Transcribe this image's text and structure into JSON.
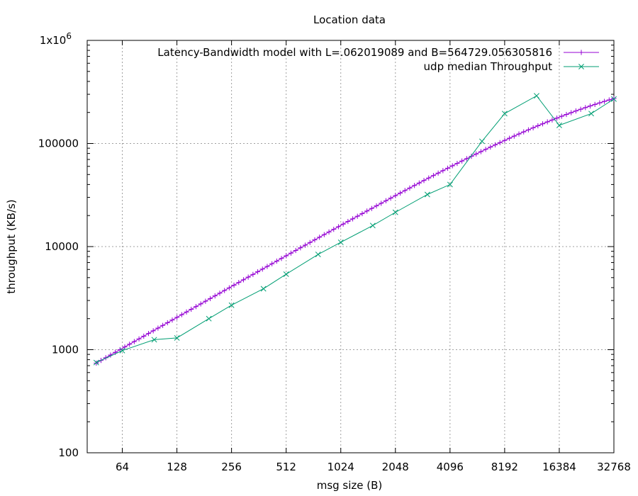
{
  "chart_data": {
    "type": "line",
    "title": "Location data",
    "xlabel": "msg size (B)",
    "ylabel": "throughput (KB/s)",
    "x_scale": "log2",
    "y_scale": "log10",
    "xlim": [
      41,
      32768
    ],
    "ylim": [
      100,
      1000000
    ],
    "grid": true,
    "legend_position": "top-right",
    "x_ticks": [
      {
        "value": 64,
        "label": "64"
      },
      {
        "value": 128,
        "label": "128"
      },
      {
        "value": 256,
        "label": "256"
      },
      {
        "value": 512,
        "label": "512"
      },
      {
        "value": 1024,
        "label": "1024"
      },
      {
        "value": 2048,
        "label": "2048"
      },
      {
        "value": 4096,
        "label": "4096"
      },
      {
        "value": 8192,
        "label": "8192"
      },
      {
        "value": 16384,
        "label": "16384"
      },
      {
        "value": 32768,
        "label": "32768"
      }
    ],
    "y_ticks": [
      {
        "value": 100,
        "label": "100"
      },
      {
        "value": 1000,
        "label": "1000"
      },
      {
        "value": 10000,
        "label": "10000"
      },
      {
        "value": 100000,
        "label": "100000"
      },
      {
        "value": 1000000,
        "label": "1x10",
        "sup": "6"
      }
    ],
    "series": [
      {
        "name": "Latency-Bandwidth model with L=.062019089 and B=564729.056305816",
        "color": "#9400d3",
        "marker": "plus",
        "model": {
          "L": 0.062019089,
          "B": 564729.056305816,
          "x_min": 46,
          "x_max": 32768,
          "points": 110
        }
      },
      {
        "name": "udp median Throughput",
        "color": "#009e73",
        "marker": "x",
        "x": [
          46,
          64,
          96,
          128,
          192,
          256,
          384,
          512,
          768,
          1024,
          1536,
          2048,
          3072,
          4096,
          6144,
          8192,
          12288,
          16384,
          24576,
          32768
        ],
        "y": [
          750,
          980,
          1250,
          1300,
          2000,
          2700,
          3900,
          5400,
          8400,
          11000,
          16000,
          21500,
          32000,
          40000,
          105000,
          195000,
          290000,
          150000,
          195000,
          270000
        ]
      }
    ]
  }
}
